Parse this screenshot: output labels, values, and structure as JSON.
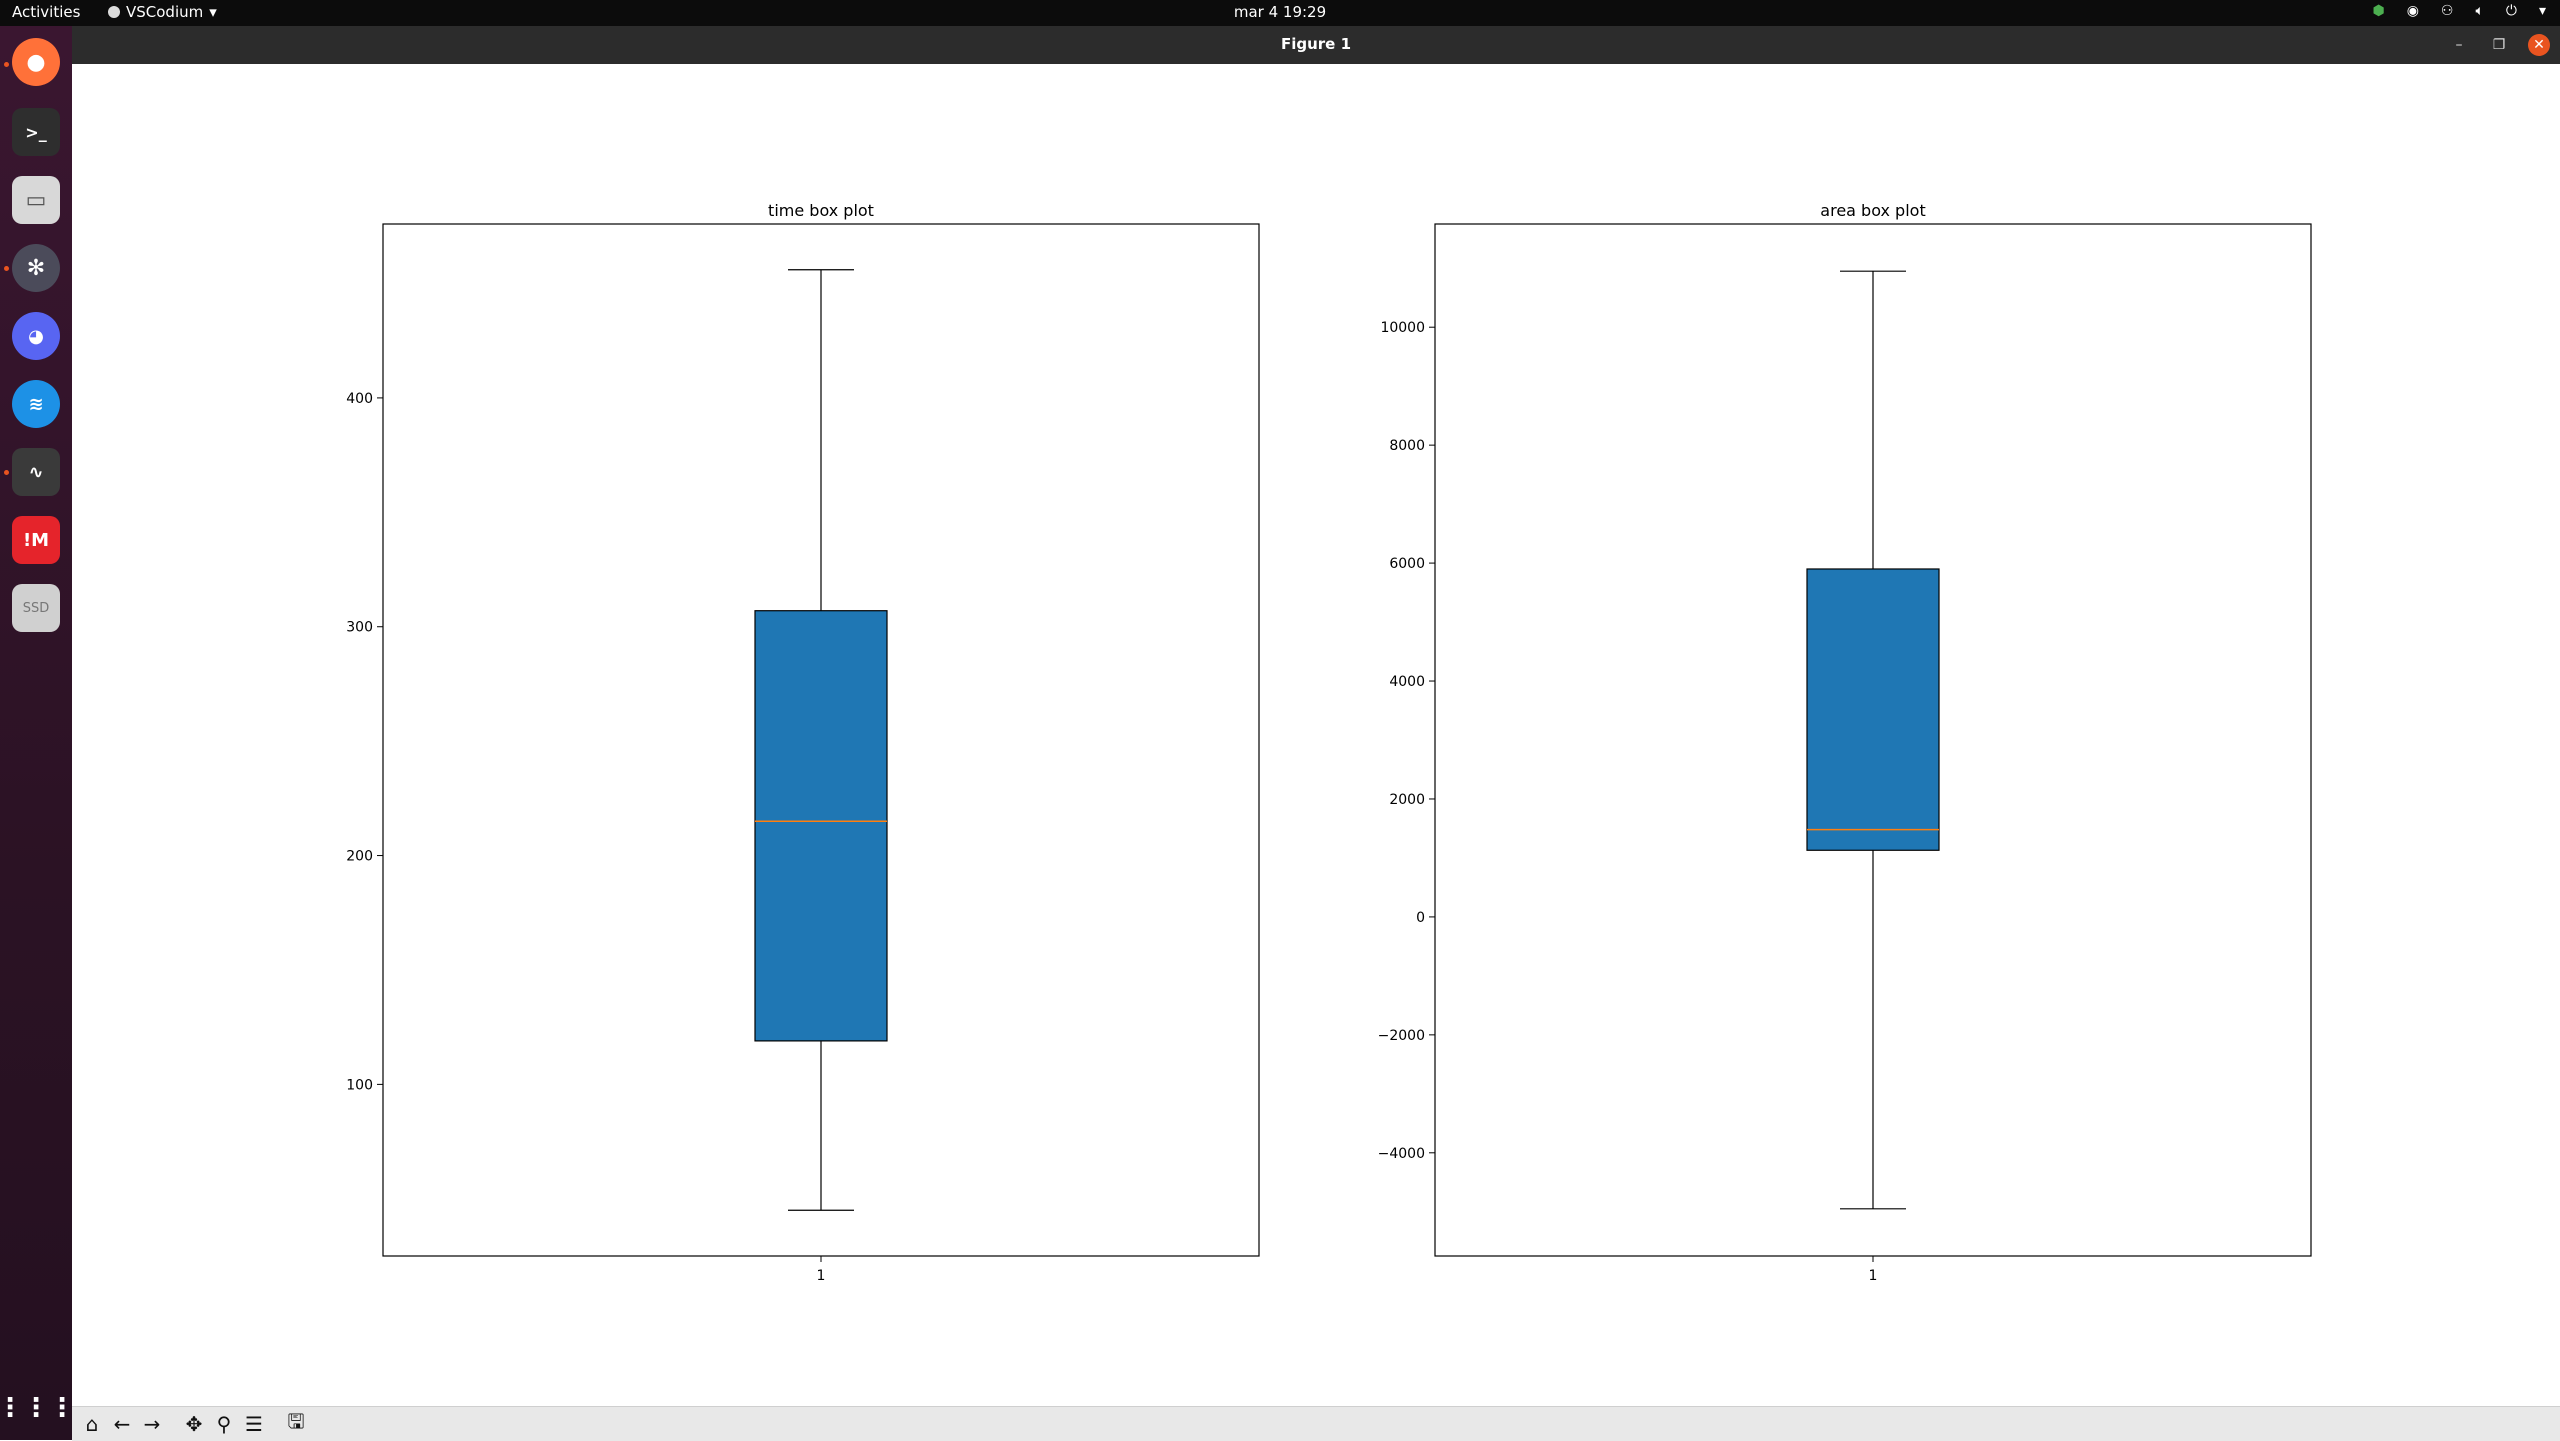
{
  "topbar": {
    "activities": "Activities",
    "app_name": "VSCodium",
    "clock": "mar 4  19:29"
  },
  "dock": {
    "items": [
      {
        "name": "firefox",
        "icon": "firefox-icon",
        "color": "#ff7139"
      },
      {
        "name": "terminal",
        "icon": "terminal-icon",
        "color": "#2e2e2e"
      },
      {
        "name": "files",
        "icon": "folder-icon",
        "color": "#d8d8d8"
      },
      {
        "name": "vscodium",
        "icon": "vscodium-icon",
        "color": "#3d5a80"
      },
      {
        "name": "discord",
        "icon": "discord-icon",
        "color": "#5865f2"
      },
      {
        "name": "docker",
        "icon": "docker-icon",
        "color": "#1d91e6"
      },
      {
        "name": "system-monitor",
        "icon": "system-monitor-icon",
        "color": "#3a3a3a"
      },
      {
        "name": "mega",
        "icon": "mega-icon",
        "color": "#e5242b"
      },
      {
        "name": "ssd",
        "icon": "drive-icon",
        "color": "#d0d0d0",
        "label": "SSD"
      }
    ]
  },
  "window": {
    "title": "Figure 1"
  },
  "chart_data": [
    {
      "type": "box",
      "title": "time box plot",
      "categories": [
        "1"
      ],
      "ylim": [
        25,
        476
      ],
      "yticks": [
        100,
        200,
        300,
        400
      ],
      "box": {
        "whisker_low": 45,
        "q1": 119,
        "median": 215,
        "q3": 307,
        "whisker_high": 456
      },
      "box_color": "#1f77b4",
      "median_color": "#ff7f0e"
    },
    {
      "type": "box",
      "title": "area box plot",
      "categories": [
        "1"
      ],
      "ylim": [
        -5750,
        11750
      ],
      "yticks": [
        -4000,
        -2000,
        0,
        2000,
        4000,
        6000,
        8000,
        10000
      ],
      "box": {
        "whisker_low": -4950,
        "q1": 1130,
        "median": 1480,
        "q3": 5900,
        "whisker_high": 10950
      },
      "box_color": "#1f77b4",
      "median_color": "#ff7f0e"
    }
  ],
  "toolbar": {
    "buttons": [
      "home-icon",
      "back-icon",
      "forward-icon",
      "pan-icon",
      "zoom-icon",
      "configure-icon",
      "save-icon"
    ]
  }
}
